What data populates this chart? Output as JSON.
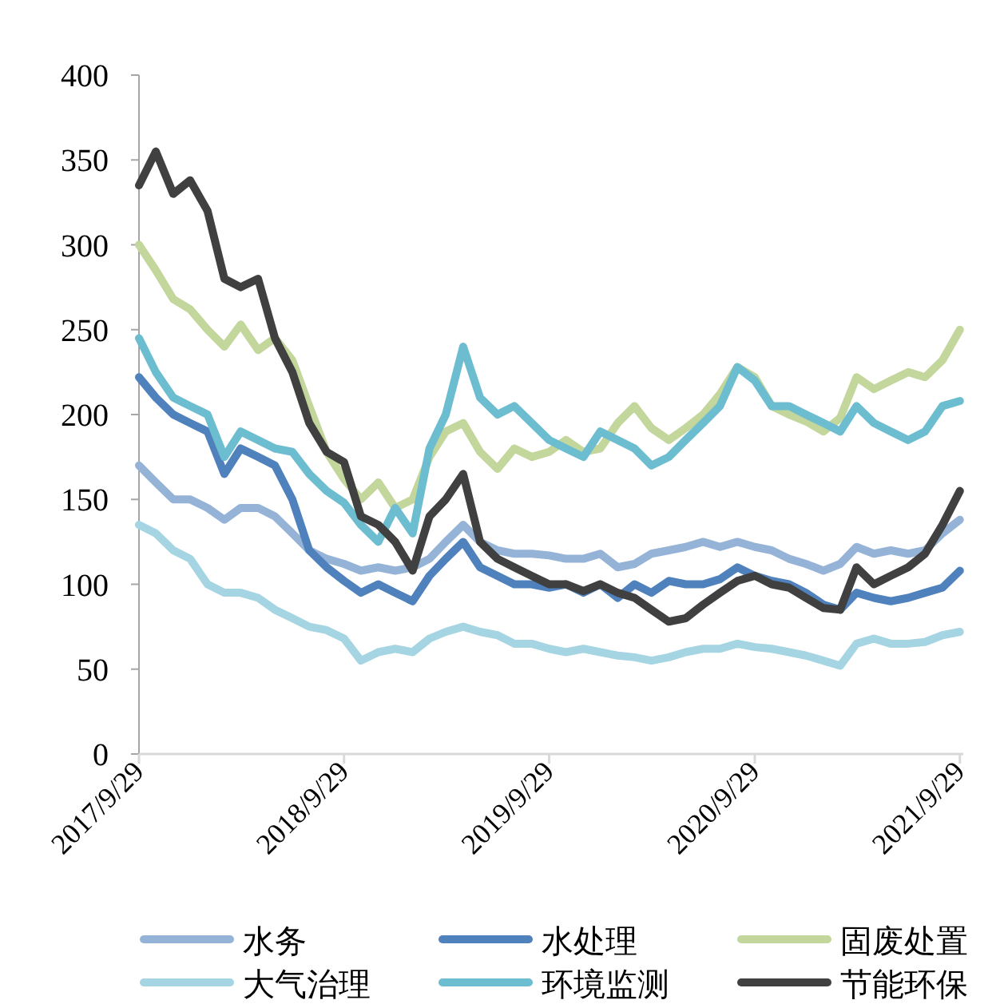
{
  "chart_data": {
    "type": "line",
    "x": [
      "2017-09-29",
      "2017-10-29",
      "2017-11-29",
      "2017-12-29",
      "2018-01-29",
      "2018-02-28",
      "2018-03-29",
      "2018-04-29",
      "2018-05-29",
      "2018-06-29",
      "2018-07-29",
      "2018-08-29",
      "2018-09-29",
      "2018-10-29",
      "2018-11-29",
      "2018-12-29",
      "2019-01-29",
      "2019-02-28",
      "2019-03-29",
      "2019-04-29",
      "2019-05-29",
      "2019-06-29",
      "2019-07-29",
      "2019-08-29",
      "2019-09-29",
      "2019-10-29",
      "2019-11-29",
      "2019-12-29",
      "2020-01-29",
      "2020-02-28",
      "2020-03-29",
      "2020-04-29",
      "2020-05-29",
      "2020-06-29",
      "2020-07-29",
      "2020-08-29",
      "2020-09-29",
      "2020-10-29",
      "2020-11-29",
      "2020-12-29",
      "2021-01-29",
      "2021-02-28",
      "2021-03-29",
      "2021-04-29",
      "2021-05-29",
      "2021-06-29",
      "2021-07-29",
      "2021-08-29",
      "2021-09-29"
    ],
    "xlim": [
      "2017-09-29",
      "2021-10-05"
    ],
    "xticks": [
      {
        "value": "2017-09-29",
        "label": "2017/9/29"
      },
      {
        "value": "2018-09-29",
        "label": "2018/9/29"
      },
      {
        "value": "2019-09-29",
        "label": "2019/9/29"
      },
      {
        "value": "2020-09-29",
        "label": "2020/9/29"
      },
      {
        "value": "2021-09-29",
        "label": "2021/9/29"
      }
    ],
    "ylim": [
      0,
      400
    ],
    "yticks": [
      0,
      50,
      100,
      150,
      200,
      250,
      300,
      350,
      400
    ],
    "legend": "bottom",
    "series": [
      {
        "name": "水务",
        "color": "#95b3d7",
        "values": [
          170,
          160,
          150,
          150,
          145,
          138,
          145,
          145,
          140,
          130,
          120,
          115,
          112,
          108,
          110,
          108,
          110,
          115,
          125,
          135,
          125,
          120,
          118,
          118,
          117,
          115,
          115,
          118,
          110,
          112,
          118,
          120,
          122,
          125,
          122,
          125,
          122,
          120,
          115,
          112,
          108,
          112,
          122,
          118,
          120,
          118,
          120,
          130,
          138
        ]
      },
      {
        "name": "水处理",
        "color": "#4f81bd",
        "values": [
          222,
          210,
          200,
          195,
          190,
          165,
          180,
          175,
          170,
          150,
          120,
          110,
          102,
          95,
          100,
          95,
          90,
          105,
          115,
          125,
          110,
          105,
          100,
          100,
          98,
          100,
          95,
          100,
          92,
          100,
          95,
          102,
          100,
          100,
          103,
          110,
          105,
          102,
          100,
          95,
          88,
          85,
          95,
          92,
          90,
          92,
          95,
          98,
          108
        ]
      },
      {
        "name": "固废处置",
        "color": "#c3d69b",
        "values": [
          300,
          285,
          268,
          262,
          250,
          240,
          253,
          238,
          245,
          232,
          205,
          178,
          162,
          150,
          160,
          145,
          150,
          175,
          190,
          195,
          178,
          168,
          180,
          175,
          178,
          185,
          178,
          180,
          195,
          205,
          192,
          185,
          192,
          200,
          212,
          228,
          222,
          205,
          200,
          196,
          190,
          198,
          222,
          215,
          220,
          225,
          222,
          232,
          250
        ]
      },
      {
        "name": "大气治理",
        "color": "#a5d5e2",
        "values": [
          135,
          130,
          120,
          115,
          100,
          95,
          95,
          92,
          85,
          80,
          75,
          73,
          68,
          55,
          60,
          62,
          60,
          68,
          72,
          75,
          72,
          70,
          65,
          65,
          62,
          60,
          62,
          60,
          58,
          57,
          55,
          57,
          60,
          62,
          62,
          65,
          63,
          62,
          60,
          58,
          55,
          52,
          65,
          68,
          65,
          65,
          66,
          70,
          72
        ]
      },
      {
        "name": "环境监测",
        "color": "#6dbdd0",
        "values": [
          245,
          225,
          210,
          205,
          200,
          175,
          190,
          185,
          180,
          178,
          165,
          155,
          148,
          135,
          125,
          145,
          130,
          180,
          200,
          240,
          210,
          200,
          205,
          195,
          185,
          180,
          175,
          190,
          185,
          180,
          170,
          175,
          185,
          195,
          205,
          228,
          220,
          205,
          205,
          200,
          195,
          190,
          205,
          195,
          190,
          185,
          190,
          205,
          208
        ]
      },
      {
        "name": "节能环保",
        "color": "#404040",
        "values": [
          335,
          355,
          330,
          338,
          320,
          280,
          275,
          280,
          245,
          225,
          195,
          178,
          172,
          140,
          135,
          125,
          108,
          140,
          150,
          165,
          125,
          115,
          110,
          105,
          100,
          100,
          96,
          100,
          95,
          92,
          85,
          78,
          80,
          88,
          95,
          102,
          105,
          100,
          98,
          92,
          86,
          85,
          110,
          100,
          105,
          110,
          118,
          135,
          155
        ]
      }
    ]
  }
}
